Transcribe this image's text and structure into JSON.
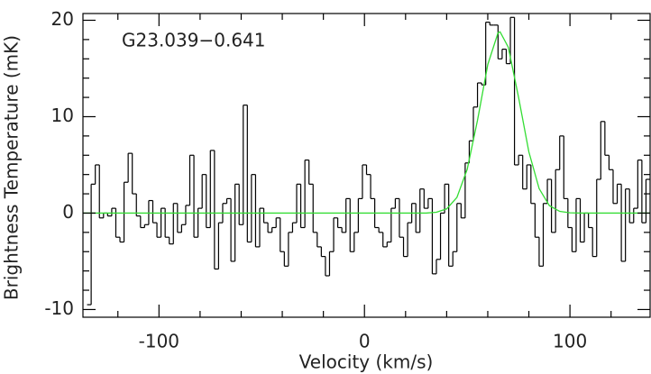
{
  "chart_data": {
    "type": "line",
    "annotation": "G23.039−0.641",
    "x_label": "Velocity (km/s)",
    "y_label": "Brightness Temperature (mK)",
    "xlim": [
      -137,
      139
    ],
    "ylim": [
      -10.8,
      20.7
    ],
    "xticks": [
      -100,
      0,
      100
    ],
    "yticks": [
      -10,
      0,
      10,
      20
    ],
    "xminorticks": [
      -120,
      -80,
      -60,
      -40,
      -20,
      20,
      40,
      60,
      80,
      120
    ],
    "yminorticks": [
      -8,
      -6,
      -4,
      -2,
      2,
      4,
      6,
      8,
      12,
      14,
      16,
      18
    ],
    "series": [
      {
        "style": "step",
        "color": "#000000",
        "bins": [
          -135,
          -133,
          -131,
          -129,
          -127,
          -125,
          -123,
          -121,
          -119,
          -117,
          -115,
          -113,
          -111,
          -109,
          -107,
          -105,
          -103,
          -101,
          -99,
          -97,
          -95,
          -93,
          -91,
          -89,
          -87,
          -85,
          -83,
          -81,
          -79,
          -77,
          -75,
          -73,
          -71,
          -69,
          -67,
          -65,
          -63,
          -61,
          -59,
          -57,
          -55,
          -53,
          -51,
          -49,
          -47,
          -45,
          -43,
          -41,
          -39,
          -37,
          -35,
          -33,
          -31,
          -29,
          -27,
          -25,
          -23,
          -21,
          -19,
          -17,
          -15,
          -13,
          -11,
          -9,
          -7,
          -5,
          -3,
          -1,
          1,
          3,
          5,
          7,
          9,
          11,
          13,
          15,
          17,
          19,
          21,
          23,
          25,
          27,
          29,
          31,
          33,
          35,
          37,
          39,
          41,
          43,
          45,
          47,
          49,
          51,
          53,
          55,
          57,
          59,
          61,
          63,
          65,
          67,
          69,
          71,
          73,
          75,
          77,
          79,
          81,
          83,
          85,
          87,
          89,
          91,
          93,
          95,
          97,
          99,
          101,
          103,
          105,
          107,
          109,
          111,
          113,
          115,
          117,
          119,
          121,
          123,
          125,
          127,
          129,
          131,
          133,
          135,
          137,
          139
        ],
        "values": [
          -9.5,
          3.0,
          5.0,
          -0.5,
          0.0,
          -0.3,
          0.5,
          -2.5,
          -3.0,
          3.2,
          6.2,
          2.0,
          -0.3,
          -1.5,
          -1.2,
          1.3,
          -1.0,
          -2.5,
          0.5,
          -2.5,
          -3.2,
          1.0,
          -2.0,
          -1.2,
          0.8,
          6.0,
          -2.5,
          0.5,
          4.0,
          -1.5,
          6.5,
          -5.8,
          -1.0,
          1.0,
          1.5,
          -5.0,
          3.0,
          -1.2,
          11.2,
          -3.0,
          4.0,
          -3.5,
          0.5,
          -1.0,
          -2.0,
          -1.5,
          -0.5,
          -4.0,
          -5.5,
          -2.0,
          -1.0,
          3.0,
          -1.5,
          5.5,
          3.0,
          -2.0,
          -3.5,
          -4.5,
          -6.5,
          -4.0,
          -0.5,
          -1.5,
          -2.0,
          1.5,
          -4.0,
          -2.0,
          1.5,
          5.0,
          4.0,
          1.5,
          -1.5,
          -2.0,
          -3.5,
          -3.0,
          0.5,
          1.5,
          -2.5,
          -4.5,
          -1.0,
          1.0,
          -2.0,
          2.5,
          0.5,
          1.5,
          -6.3,
          -4.8,
          0.0,
          3.0,
          -5.5,
          -4.0,
          1.0,
          -0.5,
          5.2,
          7.5,
          11.0,
          13.5,
          13.3,
          19.8,
          19.5,
          19.5,
          16.0,
          17.0,
          15.5,
          20.3,
          5.0,
          6.0,
          2.5,
          5.0,
          1.0,
          -2.5,
          -5.5,
          1.0,
          3.5,
          -2.0,
          4.5,
          8.0,
          1.5,
          -1.5,
          -4.0,
          1.5,
          -3.0,
          0.0,
          -1.5,
          -4.5,
          3.5,
          9.5,
          6.0,
          4.5,
          1.0,
          3.0,
          -5.0,
          2.5,
          -1.0,
          0.5,
          5.5,
          -1.0,
          3.5
        ]
      },
      {
        "style": "line",
        "color": "#33dd33",
        "x": [
          -137,
          30,
          35,
          40,
          45,
          50,
          55,
          60,
          65,
          66,
          70,
          75,
          80,
          85,
          90,
          95,
          100,
          105,
          139
        ],
        "values": [
          0,
          0,
          0.09,
          0.44,
          1.63,
          4.55,
          9.62,
          15.4,
          18.7,
          18.8,
          17.2,
          12.0,
          6.35,
          2.54,
          0.77,
          0.18,
          0.03,
          0,
          0
        ]
      }
    ]
  }
}
